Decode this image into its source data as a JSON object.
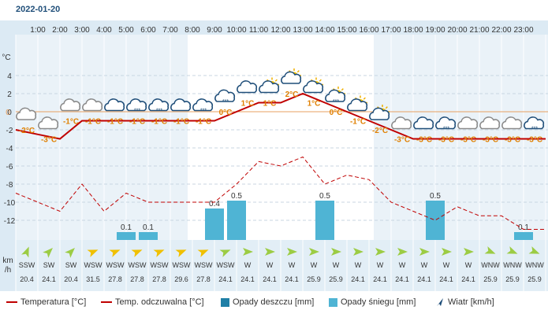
{
  "date": "2022-01-20",
  "hours": [
    "1:00",
    "2:00",
    "3:00",
    "4:00",
    "5:00",
    "6:00",
    "7:00",
    "8:00",
    "9:00",
    "10:00",
    "11:00",
    "12:00",
    "13:00",
    "14:00",
    "15:00",
    "16:00",
    "17:00",
    "18:00",
    "19:00",
    "20:00",
    "21:00",
    "22:00",
    "23:00"
  ],
  "colors": {
    "temperature": "#c00000",
    "feels_like": "#c00000",
    "rain": "#1f7fa6",
    "snow": "#4fb4d4",
    "wind_arrow_yellow": "#f0c000",
    "wind_arrow_green": "#9ccc44"
  },
  "chart_data": {
    "type": "line",
    "x": [
      "0:00",
      "1:00",
      "2:00",
      "3:00",
      "4:00",
      "5:00",
      "6:00",
      "7:00",
      "8:00",
      "9:00",
      "10:00",
      "11:00",
      "12:00",
      "13:00",
      "14:00",
      "15:00",
      "16:00",
      "17:00",
      "18:00",
      "19:00",
      "20:00",
      "21:00",
      "22:00",
      "23:00",
      "24:00"
    ],
    "ylabel": "°C",
    "ylim": [
      -14,
      6
    ],
    "yticks": [
      4,
      2,
      0,
      -2,
      -4,
      -6,
      -8,
      -10,
      -12
    ],
    "series": [
      {
        "name": "Temperatura [°C]",
        "values": [
          -2,
          -2.5,
          -3,
          -1,
          -1,
          -1,
          -1,
          -1,
          -1,
          -1,
          0,
          1,
          1,
          2,
          1,
          0,
          -1,
          -2,
          -3,
          -3,
          -3,
          -3,
          -3,
          -3,
          -3
        ]
      },
      {
        "name": "Temp. odczuwalna [°C]",
        "values": [
          -9,
          -10,
          -11,
          -8,
          -11,
          -9,
          -10,
          -10,
          -10,
          -10,
          -8,
          -5.5,
          -6,
          -5,
          -8,
          -7,
          -7.5,
          -10,
          -11,
          -12,
          -10.5,
          -11.5,
          -11.5,
          -13,
          -13
        ]
      }
    ],
    "temp_labels": [
      "-2°C",
      "-3°C",
      "-1°C",
      "-1°C",
      "-1°C",
      "-1°C",
      "-1°C",
      "-1°C",
      "-1°C",
      "0°C",
      "1°C",
      "1°C",
      "2°C",
      "1°C",
      "0°C",
      "-1°C",
      "-2°C",
      "-3°C",
      "-3°C",
      "-3°C",
      "-3°C",
      "-3°C",
      "-3°C",
      "-3°C"
    ],
    "temp_label_values": [
      -2,
      -3,
      -1,
      -1,
      -1,
      -1,
      -1,
      -1,
      -1,
      0,
      1,
      1,
      2,
      1,
      0,
      -1,
      -2,
      -3,
      -3,
      -3,
      -3,
      -3,
      -3,
      -3
    ],
    "icons": [
      "partly-cloudy-night-icon",
      "partly-cloudy-night-icon",
      "partly-cloudy-night-icon",
      "partly-cloudy-night-icon",
      "cloud-icon",
      "snow-cloud-icon",
      "snow-cloud-icon",
      "cloud-icon",
      "snow-cloud-icon",
      "snow-cloud-icon",
      "cloud-icon",
      "partly-sunny-icon",
      "partly-sunny-icon",
      "partly-sunny-icon",
      "sun-snow-cloud-icon",
      "partly-sunny-icon",
      "partly-sunny-icon",
      "partly-cloudy-night-icon",
      "cloud-icon",
      "snow-cloud-icon",
      "partly-cloudy-night-icon",
      "partly-cloudy-night-icon",
      "partly-cloudy-night-icon",
      "snow-cloud-icon",
      "snow-cloud-icon"
    ],
    "precip": {
      "name": "Opady śniegu [mm]",
      "values": [
        0,
        0,
        0,
        0,
        0,
        0.1,
        0.1,
        0,
        0,
        0.4,
        0.5,
        0,
        0,
        0,
        0.5,
        0,
        0,
        0,
        0,
        0.5,
        0,
        0,
        0,
        0.1,
        0
      ],
      "labels": [
        "",
        "",
        "",
        "",
        "",
        "0.1",
        "0.1",
        "",
        "",
        "0.4",
        "0.5",
        "",
        "",
        "",
        "0.5",
        "",
        "",
        "",
        "",
        "0.5",
        "",
        "",
        "",
        "0.1",
        ""
      ]
    },
    "wind": {
      "directions": [
        "SSW",
        "SW",
        "SW",
        "WSW",
        "WSW",
        "WSW",
        "WSW",
        "WSW",
        "WSW",
        "WSW",
        "W",
        "W",
        "W",
        "W",
        "W",
        "W",
        "W",
        "W",
        "W",
        "W",
        "W",
        "WNW",
        "WNW",
        "WNW"
      ],
      "speeds": [
        "20.4",
        "24.1",
        "20.4",
        "31.5",
        "27.8",
        "27.8",
        "27.8",
        "29.6",
        "27.8",
        "24.1",
        "24.1",
        "24.1",
        "24.1",
        "25.9",
        "25.9",
        "24.1",
        "24.1",
        "24.1",
        "24.1",
        "24.1",
        "24.1",
        "25.9",
        "25.9",
        "25.9"
      ],
      "unit_top": "km",
      "unit_bottom": "/h"
    }
  },
  "legend": {
    "temperature": "Temperatura [°C]",
    "feels_like": "Temp. odczuwalna [°C]",
    "rain": "Opady deszczu [mm]",
    "snow": "Opady śniegu [mm]",
    "wind": "Wiatr [km/h]"
  }
}
